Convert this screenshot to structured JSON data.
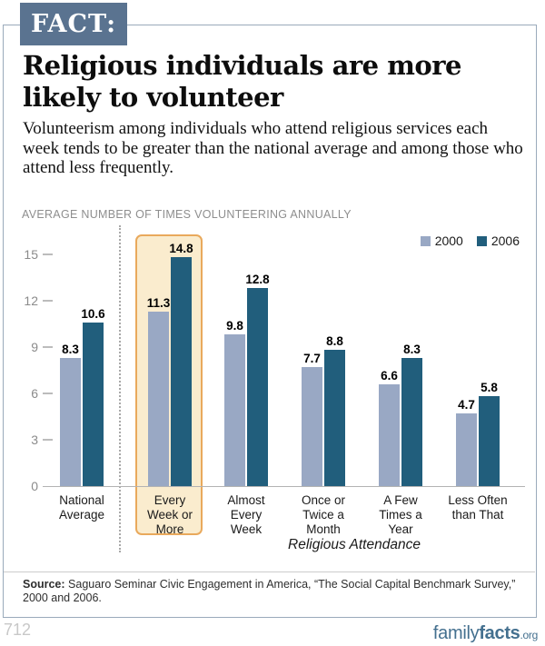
{
  "badge": {
    "label": "FACT:"
  },
  "title": "Religious individuals are more likely to volunteer",
  "subtitle": "Volunteerism among individuals who attend religious services each week tends to be greater than the national average and among those who attend less frequently.",
  "chart_heading": "AVERAGE NUMBER OF TIMES VOLUNTEERING ANNUALLY",
  "chart_data": {
    "type": "bar",
    "categories": [
      "National Average",
      "Every Week or More",
      "Almost Every Week",
      "Once or Twice a Month",
      "A Few Times a Year",
      "Less Often than That"
    ],
    "category_tick_lines": [
      [
        "National",
        "Average"
      ],
      [
        "Every",
        "Week or",
        "More"
      ],
      [
        "Almost",
        "Every",
        "Week"
      ],
      [
        "Once or",
        "Twice a",
        "Month"
      ],
      [
        "A Few",
        "Times a",
        "Year"
      ],
      [
        "Less Often",
        "than That"
      ]
    ],
    "series": [
      {
        "name": "2000",
        "color": "#99a8c4",
        "values": [
          8.3,
          11.3,
          9.8,
          7.7,
          6.6,
          4.7
        ]
      },
      {
        "name": "2006",
        "color": "#215e7c",
        "values": [
          10.6,
          14.8,
          12.8,
          8.8,
          8.3,
          5.8
        ]
      }
    ],
    "xlabel": "Religious Attendance",
    "ylabel": "",
    "yticks": [
      0,
      3,
      6,
      9,
      12,
      15
    ],
    "ylim": [
      0,
      16
    ],
    "grid": false,
    "legend_position": "top-right",
    "highlighted_category": "Every Week or More",
    "separator_after_category": "National Average"
  },
  "source": {
    "label": "Source:",
    "text": "Saguaro Seminar Civic Engagement in America, “The Social Capital Benchmark Survey,” 2000 and 2006."
  },
  "footer": {
    "page_number": "712",
    "logo": {
      "part1": "family",
      "part2": "facts",
      "suffix": ".org"
    }
  },
  "colors": {
    "badge_bg": "#5a7390",
    "bar_2000": "#99a8c4",
    "bar_2006": "#215e7c",
    "highlight_fill": "#faecce",
    "highlight_border": "#e9a95c",
    "logo_blue": "#44708f"
  }
}
